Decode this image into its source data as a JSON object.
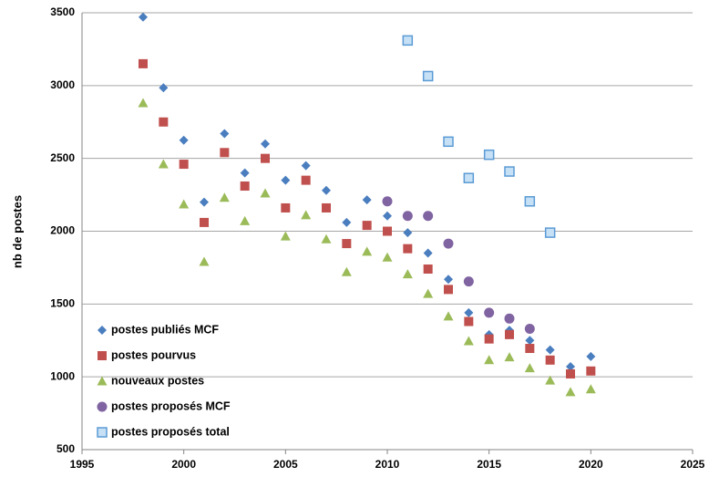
{
  "chart_data": {
    "type": "scatter",
    "y_label": "nb de postes",
    "xlim": [
      1995,
      2025
    ],
    "xticks": [
      1995,
      2000,
      2005,
      2010,
      2015,
      2020,
      2025
    ],
    "ylim": [
      500,
      3500
    ],
    "yticks": [
      500,
      1000,
      1500,
      2000,
      2500,
      3000,
      3500
    ],
    "grid": true,
    "legend": "lower left",
    "series": [
      {
        "name": "postes publiés MCF",
        "color": "#4a7ebf",
        "marker": "diamond",
        "x": [
          1998,
          1999,
          2000,
          2001,
          2002,
          2003,
          2004,
          2005,
          2006,
          2007,
          2008,
          2009,
          2010,
          2011,
          2012,
          2013,
          2014,
          2015,
          2016,
          2017,
          2018,
          2019,
          2020
        ],
        "values": [
          3470,
          2985,
          2625,
          2200,
          2670,
          2400,
          2600,
          2350,
          2450,
          2280,
          2060,
          2215,
          2105,
          1990,
          1850,
          1670,
          1440,
          1290,
          1320,
          1250,
          1185,
          1070,
          1140
        ]
      },
      {
        "name": "postes pourvus",
        "color": "#c0504d",
        "marker": "square",
        "x": [
          1998,
          1999,
          2000,
          2001,
          2002,
          2003,
          2004,
          2005,
          2006,
          2007,
          2008,
          2009,
          2010,
          2011,
          2012,
          2013,
          2014,
          2015,
          2016,
          2017,
          2018,
          2019,
          2020
        ],
        "values": [
          3150,
          2750,
          2460,
          2060,
          2540,
          2310,
          2500,
          2160,
          2350,
          2160,
          1915,
          2040,
          2000,
          1880,
          1740,
          1600,
          1380,
          1260,
          1290,
          1195,
          1115,
          1020,
          1040
        ]
      },
      {
        "name": "nouveaux postes",
        "color": "#9bbb59",
        "marker": "triangle",
        "x": [
          1998,
          1999,
          2000,
          2001,
          2002,
          2003,
          2004,
          2005,
          2006,
          2007,
          2008,
          2009,
          2010,
          2011,
          2012,
          2013,
          2014,
          2015,
          2016,
          2017,
          2018,
          2019,
          2020
        ],
        "values": [
          2880,
          2460,
          2185,
          1790,
          2230,
          2070,
          2260,
          1965,
          2110,
          1945,
          1720,
          1860,
          1820,
          1705,
          1570,
          1415,
          1245,
          1115,
          1135,
          1060,
          975,
          895,
          915
        ]
      },
      {
        "name": "postes proposés MCF",
        "color": "#8064a2",
        "marker": "circle",
        "x": [
          2010,
          2011,
          2012,
          2013,
          2014,
          2015,
          2016,
          2017
        ],
        "values": [
          2205,
          2105,
          2105,
          1915,
          1655,
          1440,
          1400,
          1330
        ]
      },
      {
        "name": "postes proposés total",
        "color": "#c6e0f5",
        "edgecolor": "#5b9bd5",
        "marker": "square",
        "x": [
          2011,
          2012,
          2013,
          2014,
          2015,
          2016,
          2017,
          2018
        ],
        "values": [
          3310,
          3065,
          2615,
          2365,
          2525,
          2410,
          2205,
          1990
        ]
      }
    ]
  }
}
